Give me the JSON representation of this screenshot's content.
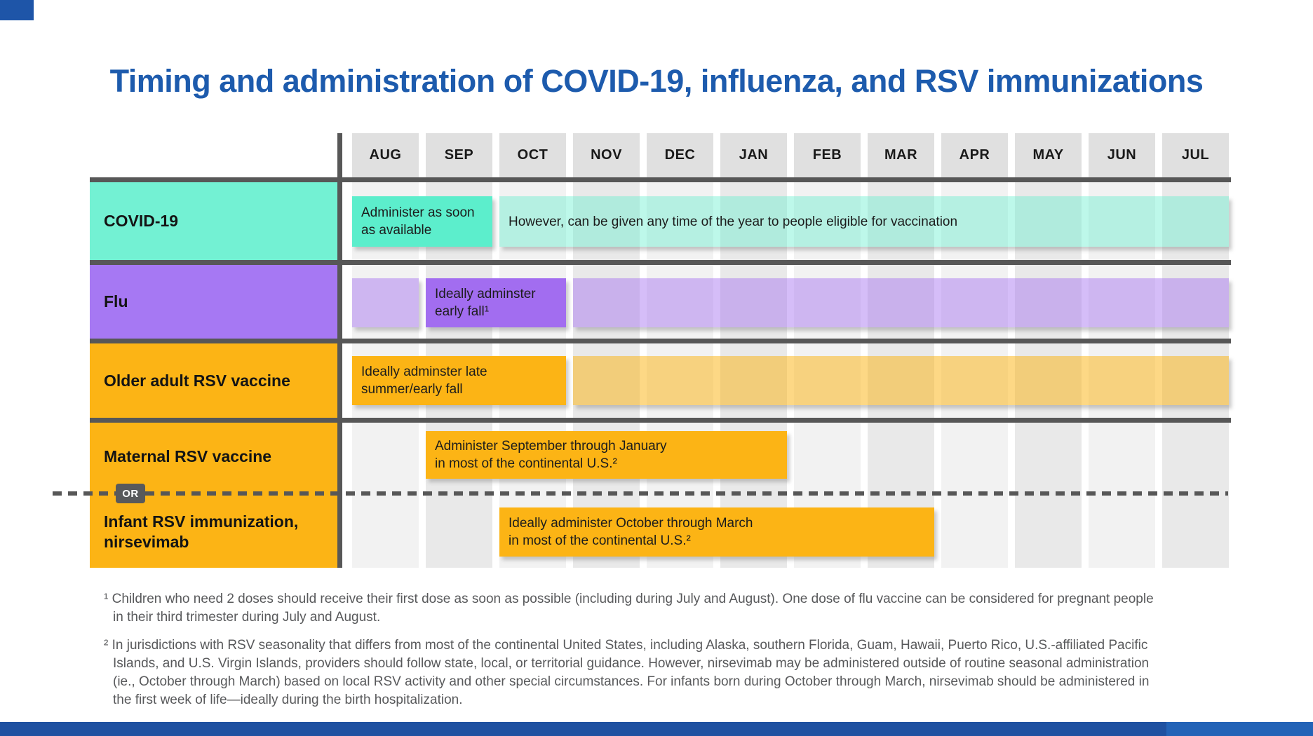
{
  "colors": {
    "title_blue": "#1D5BAD",
    "corner_accent": "#1E55A8",
    "header_box": "#E0E0E0",
    "stripe_light": "#F2F2F2",
    "stripe_dark": "#E9E9E9",
    "grid_line": "#575757",
    "footer_left": "#1F51A1",
    "footer_right": "#2363B7",
    "or_badge_bg": "#58595B"
  },
  "chart_data": {
    "type": "gantt",
    "title": "Timing and administration of COVID-19, influenza, and RSV immunizations",
    "months": [
      "AUG",
      "SEP",
      "OCT",
      "NOV",
      "DEC",
      "JAN",
      "FEB",
      "MAR",
      "APR",
      "MAY",
      "JUN",
      "JUL"
    ],
    "legend_position": "none",
    "grid": "monthly-column-stripes",
    "rows": [
      {
        "label_lines": [
          "COVID-19"
        ],
        "label_color": "#73F1D3",
        "bars": [
          {
            "start": "AUG",
            "end": "SEP",
            "color": "#5CEECC",
            "lines": [
              "Administer as soon",
              "as available"
            ]
          },
          {
            "start": "OCT",
            "end": "JUL",
            "color": "rgba(97,238,205,0.42)",
            "lines": [
              "However, can be given any time of the year to people eligible for vaccination"
            ]
          }
        ]
      },
      {
        "label_lines": [
          "Flu"
        ],
        "label_color": "#A678F3",
        "bars": [
          {
            "start": "AUG",
            "end": "AUG",
            "color": "rgba(162,109,240,0.45)",
            "lines": []
          },
          {
            "start": "SEP",
            "end": "OCT",
            "color": "#A26DF0",
            "lines": [
              "Ideally adminster",
              "early fall¹"
            ]
          },
          {
            "start": "NOV",
            "end": "JUL",
            "color": "rgba(162,109,240,0.45)",
            "lines": []
          }
        ]
      },
      {
        "label_lines": [
          "Older adult RSV vaccine"
        ],
        "label_color": "#FCB415",
        "bars": [
          {
            "start": "AUG",
            "end": "OCT",
            "color": "#FCB415",
            "lines": [
              "Ideally adminster late",
              "summer/early fall"
            ]
          },
          {
            "start": "NOV",
            "end": "JUL",
            "color": "rgba(252,180,21,0.52)",
            "lines": []
          }
        ]
      },
      {
        "label_lines": [
          "Maternal RSV vaccine"
        ],
        "label_color": "#FCB415",
        "bars": [
          {
            "start": "SEP",
            "end": "JAN",
            "color": "#FCB415",
            "lines": [
              "Administer September through January",
              "in most of the continental U.S.²"
            ]
          }
        ]
      },
      {
        "label_lines": [
          "Infant RSV immunization,",
          "nirsevimab"
        ],
        "label_color": "#FCB415",
        "bars": [
          {
            "start": "OCT",
            "end": "MAR",
            "color": "#FCB415",
            "lines": [
              "Ideally administer October through March",
              "in most of the continental U.S.²"
            ]
          }
        ]
      }
    ],
    "or_divider": {
      "label": "OR",
      "between_rows": [
        "Maternal RSV vaccine",
        "Infant RSV immunization, nirsevimab"
      ]
    }
  },
  "footnotes": [
    {
      "lines": [
        "¹ Children who need 2 doses should receive their first dose as soon as possible (including during July and August). One dose of flu vaccine can be considered for pregnant people",
        "in their third trimester during July and August."
      ]
    },
    {
      "lines": [
        "² In jurisdictions with RSV seasonality that differs from most of the continental United States, including Alaska, southern Florida, Guam, Hawaii, Puerto Rico, U.S.-affiliated Pacific",
        "Islands, and U.S. Virgin Islands, providers should follow state, local, or territorial guidance. However, nirsevimab may be administered outside of routine seasonal administration",
        "(ie., October through March) based on local RSV activity and other special circumstances. For infants born during October through March, nirsevimab should be administered in",
        "the first week of life—ideally during the birth hospitalization."
      ]
    }
  ]
}
